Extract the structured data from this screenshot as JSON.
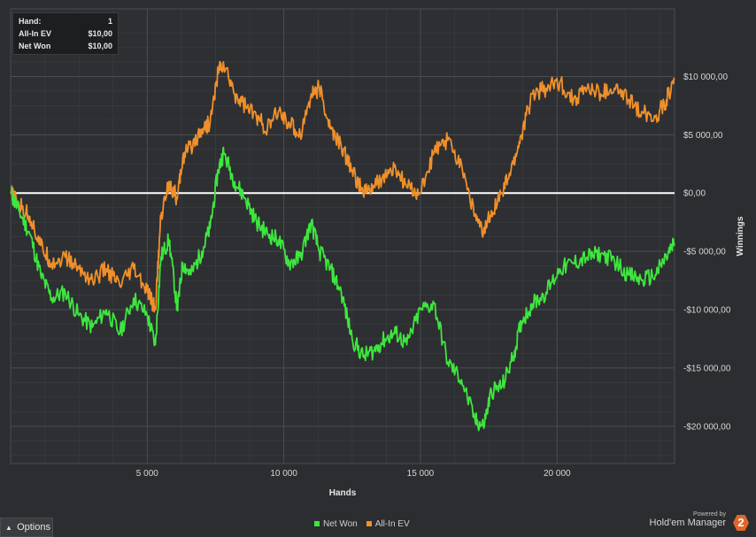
{
  "tooltip": {
    "hand_label": "Hand:",
    "hand_value": "1",
    "allin_label": "All-In EV",
    "allin_value": "$10,00",
    "netwon_label": "Net Won",
    "netwon_value": "$10,00"
  },
  "options_label": "Options",
  "powered_by": "Powered by",
  "brand": "Hold'em Manager",
  "brand_badge": "2",
  "colors": {
    "net_won": "#3ee63e",
    "all_in_ev": "#f0902a",
    "zero_line": "#ffffff",
    "grid": "#3c3f43"
  },
  "chart_data": {
    "type": "line",
    "xlabel": "Hands",
    "ylabel": "Winnings",
    "xlim": [
      0,
      24300
    ],
    "ylim": [
      -23200,
      15800
    ],
    "x_ticks": [
      {
        "v": 5000,
        "label": "5 000"
      },
      {
        "v": 10000,
        "label": "10 000"
      },
      {
        "v": 15000,
        "label": "15 000"
      },
      {
        "v": 20000,
        "label": "20 000"
      }
    ],
    "y_ticks": [
      {
        "v": 10000,
        "label": "$10 000,00"
      },
      {
        "v": 5000,
        "label": "$5 000,00"
      },
      {
        "v": 0,
        "label": "$0,00"
      },
      {
        "v": -5000,
        "label": "-$5 000,00"
      },
      {
        "v": -10000,
        "label": "-$10 000,00"
      },
      {
        "v": -15000,
        "label": "-$15 000,00"
      },
      {
        "v": -20000,
        "label": "-$20 000,00"
      }
    ],
    "grid": true,
    "legend_position": "bottom",
    "series": [
      {
        "name": "Net Won",
        "x": [
          0,
          300,
          700,
          1100,
          1500,
          2000,
          2500,
          3000,
          3500,
          4000,
          4500,
          5000,
          5300,
          5500,
          5800,
          6100,
          6300,
          6600,
          7000,
          7300,
          7600,
          7800,
          8200,
          8600,
          9000,
          9400,
          9800,
          10200,
          10600,
          11000,
          11300,
          11700,
          12100,
          12500,
          12900,
          13300,
          13700,
          14100,
          14500,
          15000,
          15500,
          16000,
          16500,
          17000,
          17300,
          17600,
          18000,
          18400,
          18700,
          19100,
          19600,
          20100,
          20600,
          21100,
          21600,
          22100,
          22600,
          23100,
          23600,
          24000,
          24300
        ],
        "values": [
          10,
          -1500,
          -3500,
          -7000,
          -9000,
          -8500,
          -10500,
          -11500,
          -10000,
          -12000,
          -9000,
          -10500,
          -13000,
          -5500,
          -4000,
          -10000,
          -6000,
          -7000,
          -5000,
          -3000,
          2000,
          3500,
          1000,
          -500,
          -2500,
          -3500,
          -4000,
          -6000,
          -5500,
          -2500,
          -5000,
          -6500,
          -8500,
          -12500,
          -14000,
          -13500,
          -12500,
          -12000,
          -13000,
          -10000,
          -9500,
          -14500,
          -16000,
          -19500,
          -20000,
          -17000,
          -16500,
          -14000,
          -11000,
          -9500,
          -8500,
          -6500,
          -6000,
          -5500,
          -5200,
          -5800,
          -7000,
          -7500,
          -7000,
          -5500,
          -4300
        ]
      },
      {
        "name": "All-In EV",
        "x": [
          0,
          300,
          700,
          1100,
          1500,
          2000,
          2500,
          3000,
          3500,
          4000,
          4500,
          5000,
          5300,
          5500,
          5800,
          6100,
          6300,
          6600,
          7000,
          7300,
          7600,
          7800,
          8200,
          8600,
          9000,
          9400,
          9800,
          10200,
          10600,
          11000,
          11300,
          11700,
          12100,
          12500,
          12900,
          13300,
          13700,
          14100,
          14500,
          15000,
          15500,
          16000,
          16500,
          17000,
          17300,
          17600,
          18000,
          18400,
          18700,
          19100,
          19600,
          20100,
          20600,
          21100,
          21600,
          22100,
          22600,
          23100,
          23600,
          24000,
          24300
        ],
        "values": [
          10,
          -1000,
          -2000,
          -4500,
          -6000,
          -5500,
          -6500,
          -7500,
          -6500,
          -8000,
          -6500,
          -8500,
          -10000,
          -2000,
          1000,
          -500,
          3000,
          4000,
          5500,
          6000,
          10500,
          11000,
          8500,
          7500,
          6500,
          5500,
          7000,
          6000,
          5000,
          8500,
          9000,
          5500,
          4000,
          2000,
          0,
          500,
          1500,
          2000,
          500,
          0,
          3500,
          4500,
          2500,
          -2000,
          -3500,
          -1500,
          0,
          2500,
          5000,
          8500,
          9000,
          9500,
          8000,
          9000,
          8500,
          9000,
          8000,
          7000,
          6500,
          8000,
          9800
        ]
      }
    ]
  }
}
